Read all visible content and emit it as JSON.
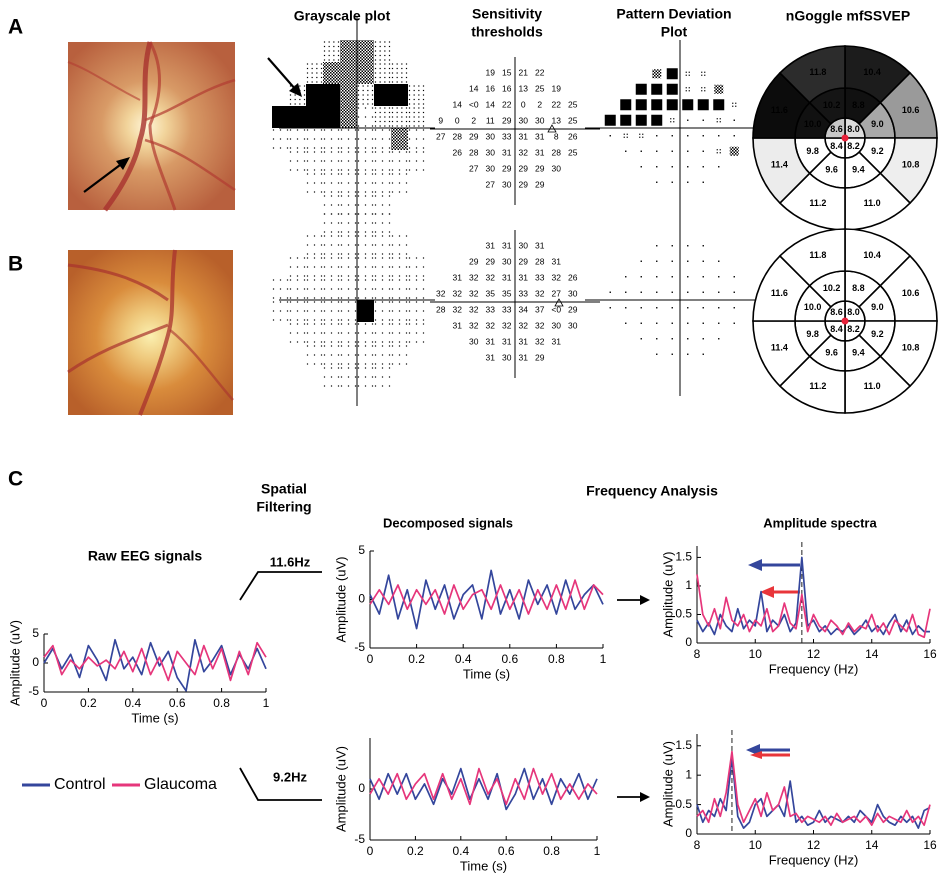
{
  "column_titles": [
    [
      "Grayscale plot"
    ],
    [
      "Sensitivity",
      "thresholds"
    ],
    [
      "Pattern Deviation",
      "Plot"
    ],
    [
      "nGoggle mfSSVEP"
    ]
  ],
  "panels": [
    {
      "label": "A",
      "sensitivity": [
        [
          19,
          15,
          21,
          22
        ],
        [
          14,
          16,
          16,
          13,
          25,
          19
        ],
        [
          14,
          "<0",
          14,
          22,
          0,
          2,
          22,
          25
        ],
        [
          9,
          0,
          2,
          11,
          29,
          30,
          30,
          13,
          25
        ],
        [
          27,
          28,
          29,
          30,
          33,
          31,
          31,
          8,
          26
        ],
        [
          26,
          28,
          30,
          31,
          32,
          31,
          28,
          25
        ],
        [
          27,
          30,
          29,
          29,
          29,
          30
        ],
        [
          27,
          30,
          29,
          29
        ]
      ],
      "ngoggle": [
        {
          "values": [
            8,
            8.2,
            8.4,
            8.6
          ],
          "value_labels": [
            "8.0",
            "8.2",
            "8.4",
            "8.6"
          ],
          "colors": [
            "#dddddd",
            "#ffffff",
            "#ffffff",
            "#c8c8c8"
          ]
        },
        {
          "values": [
            8.8,
            9,
            9.2,
            9.4,
            9.6,
            9.8,
            10,
            10.2
          ],
          "value_labels": [
            "8.8",
            "9.0",
            "9.2",
            "9.4",
            "9.6",
            "9.8",
            "10.0",
            "10.2"
          ],
          "colors": [
            "#111111",
            "#a8a8a8",
            "#ffffff",
            "#ffffff",
            "#ffffff",
            "#ffffff",
            "#111111",
            "#151515"
          ]
        },
        {
          "values": [
            10.4,
            10.6,
            10.8,
            11,
            11.2,
            11.4,
            11.6,
            11.8
          ],
          "value_labels": [
            "10.4",
            "10.6",
            "10.8",
            "11.0",
            "11.2",
            "11.4",
            "11.6",
            "11.8"
          ],
          "colors": [
            "#1c1c1c",
            "#9a9a9a",
            "#eeeeee",
            "#ffffff",
            "#ffffff",
            "#ececec",
            "#0c0c0c",
            "#2c2c2c"
          ]
        }
      ]
    },
    {
      "label": "B",
      "sensitivity": [
        [
          31,
          31,
          30,
          31
        ],
        [
          29,
          29,
          30,
          29,
          28,
          31
        ],
        [
          31,
          32,
          32,
          31,
          31,
          33,
          32,
          26
        ],
        [
          32,
          32,
          32,
          35,
          35,
          33,
          32,
          27,
          30
        ],
        [
          28,
          32,
          32,
          33,
          33,
          34,
          37,
          "<0",
          29
        ],
        [
          31,
          32,
          32,
          32,
          32,
          32,
          30,
          30
        ],
        [
          30,
          31,
          31,
          31,
          32,
          31
        ],
        [
          31,
          30,
          31,
          29
        ]
      ],
      "ngoggle": [
        {
          "values": [
            8,
            8.2,
            8.4,
            8.6
          ],
          "value_labels": [
            "8.0",
            "8.2",
            "8.4",
            "8.6"
          ],
          "color": "#ffffff"
        },
        {
          "values": [
            8.8,
            9,
            9.2,
            9.4,
            9.6,
            9.8,
            10,
            10.2
          ],
          "value_labels": [
            "8.8",
            "9.0",
            "9.2",
            "9.4",
            "9.6",
            "9.8",
            "10.0",
            "10.2"
          ],
          "color": "#ffffff"
        },
        {
          "values": [
            10.4,
            10.6,
            10.8,
            11,
            11.2,
            11.4,
            11.6,
            11.8
          ],
          "value_labels": [
            "10.4",
            "10.6",
            "10.8",
            "11.0",
            "11.2",
            "11.4",
            "11.6",
            "11.8"
          ],
          "color": "#ffffff"
        }
      ]
    }
  ],
  "panel_c": {
    "label": "C",
    "spatial_filtering": [
      "Spatial",
      "Filtering"
    ],
    "frequency_analysis": "Frequency Analysis",
    "decomposed_title": "Decomposed signals",
    "spectra_title": "Amplitude spectra",
    "frequencies": [
      "11.6Hz",
      "9.2Hz"
    ]
  },
  "chart_data": [
    {
      "type": "line",
      "title": "Raw EEG signals",
      "x_label": "Time (s)",
      "y_label": "Amplitude (uV)",
      "legend": "below",
      "x": [
        0,
        0.04,
        0.08,
        0.12,
        0.16,
        0.2,
        0.24,
        0.28,
        0.32,
        0.36,
        0.4,
        0.44,
        0.48,
        0.52,
        0.56,
        0.6,
        0.64,
        0.68,
        0.72,
        0.76,
        0.8,
        0.84,
        0.88,
        0.92,
        0.96,
        1
      ],
      "series": [
        {
          "name": "Control",
          "color": "#34469c",
          "values": [
            0,
            2.5,
            -1,
            1.5,
            -2.5,
            3,
            0.5,
            -3,
            4,
            -1,
            1,
            -2,
            3.5,
            -0.5,
            2,
            -2.5,
            -4.8,
            4,
            -1.5,
            0.5,
            3,
            -2,
            1.5,
            -1,
            2.5,
            -1
          ]
        },
        {
          "name": "Glaucoma",
          "color": "#e6367b",
          "values": [
            1,
            3,
            -2,
            0.5,
            -1,
            1,
            -0.5,
            0.5,
            -1,
            2,
            -1.5,
            2.5,
            -2,
            1,
            -3,
            2,
            0,
            -2,
            3,
            -1,
            2.5,
            -3,
            2,
            -2,
            3.5,
            1
          ]
        }
      ],
      "xlim": [
        0,
        1
      ],
      "ylim": [
        -5,
        5
      ],
      "xticks": [
        0,
        0.2,
        0.4,
        0.6,
        0.8,
        1
      ],
      "yticks": [
        -5,
        0,
        5
      ]
    },
    {
      "type": "line",
      "x_label": "Time (s)",
      "y_label": "Amplitude (uV)",
      "x": [
        0,
        0.04,
        0.08,
        0.12,
        0.16,
        0.2,
        0.24,
        0.28,
        0.32,
        0.36,
        0.4,
        0.44,
        0.48,
        0.52,
        0.56,
        0.6,
        0.64,
        0.68,
        0.72,
        0.76,
        0.8,
        0.84,
        0.88,
        0.92,
        0.96,
        1
      ],
      "series": [
        {
          "color": "#34469c",
          "values": [
            0.5,
            -1.5,
            2.5,
            -2,
            1,
            -3,
            2,
            -1,
            1.5,
            -2,
            0.5,
            1.5,
            -2,
            3,
            -1.5,
            1,
            -2,
            2,
            -0.5,
            1.5,
            -1.5,
            2,
            -1,
            0.5,
            1.5,
            -0.5
          ]
        },
        {
          "color": "#e6367b",
          "values": [
            -0.5,
            1,
            -0.5,
            1.5,
            -1,
            1,
            -0.5,
            1,
            -1.5,
            1.5,
            -1,
            0.5,
            1,
            -1,
            1.5,
            -1,
            1,
            -1.5,
            1,
            -1,
            1.5,
            -1,
            2,
            -1,
            1.5,
            0.5
          ]
        }
      ],
      "xlim": [
        0,
        1
      ],
      "ylim": [
        -5,
        5
      ],
      "xticks": [
        0,
        0.2,
        0.4,
        0.6,
        0.8,
        1
      ],
      "yticks": [
        -5,
        0,
        5
      ]
    },
    {
      "type": "line",
      "x_label": "Time (s)",
      "y_label": "Amplitude (uV)",
      "x": [
        0,
        0.04,
        0.08,
        0.12,
        0.16,
        0.2,
        0.24,
        0.28,
        0.32,
        0.36,
        0.4,
        0.44,
        0.48,
        0.52,
        0.56,
        0.6,
        0.64,
        0.68,
        0.72,
        0.76,
        0.8,
        0.84,
        0.88,
        0.92,
        0.96,
        1
      ],
      "series": [
        {
          "color": "#34469c",
          "values": [
            1,
            -1,
            1.5,
            -0.5,
            1.5,
            -1,
            0.5,
            -1.5,
            1,
            -0.5,
            2,
            -1,
            1,
            -1,
            1.5,
            -2,
            -0.5,
            2,
            -1,
            1,
            -1.5,
            1,
            -0.5,
            1.5,
            -1,
            1
          ]
        },
        {
          "color": "#e6367b",
          "values": [
            -0.5,
            1,
            -0.5,
            1.5,
            -1,
            0.5,
            1.5,
            -1,
            1.5,
            -1,
            1,
            -1.5,
            2,
            -0.5,
            1,
            -1.5,
            1,
            -1,
            2,
            -0.5,
            1.5,
            -1,
            0.5,
            -1,
            0.5,
            -0.5
          ]
        }
      ],
      "xlim": [
        0,
        1
      ],
      "ylim": [
        -5,
        5
      ],
      "xticks": [
        0,
        0.2,
        0.4,
        0.6,
        0.8,
        1
      ],
      "yticks": [
        -5,
        0
      ]
    },
    {
      "type": "line",
      "x_label": "Frequency (Hz)",
      "y_label": "Amplitude (uV)",
      "marker_x": 11.6,
      "x": [
        8,
        8.2,
        8.4,
        8.6,
        8.8,
        9,
        9.2,
        9.4,
        9.6,
        9.8,
        10,
        10.2,
        10.4,
        10.6,
        10.8,
        11,
        11.2,
        11.4,
        11.6,
        11.8,
        12,
        12.2,
        12.4,
        12.6,
        12.8,
        13,
        13.2,
        13.4,
        13.6,
        13.8,
        14,
        14.2,
        14.4,
        14.6,
        14.8,
        15,
        15.2,
        15.4,
        15.6,
        15.8,
        16
      ],
      "series": [
        {
          "color": "#34469c",
          "values": [
            0.4,
            0.2,
            0.35,
            0.15,
            0.5,
            0.3,
            0.2,
            0.6,
            0.25,
            0.4,
            0.3,
            0.9,
            0.2,
            0.4,
            0.3,
            0.5,
            0.2,
            0.35,
            1.5,
            0.3,
            0.4,
            0.2,
            0.3,
            0.15,
            0.25,
            0.2,
            0.3,
            0.15,
            0.25,
            0.4,
            0.2,
            0.3,
            0.15,
            0.35,
            0.5,
            0.2,
            0.4,
            0.15,
            0.3,
            0.2,
            0.2
          ]
        },
        {
          "color": "#e6367b",
          "values": [
            1.2,
            0.5,
            0.3,
            0.6,
            0.25,
            0.8,
            0.4,
            0.3,
            0.5,
            0.2,
            0.4,
            0.3,
            0.6,
            0.2,
            0.3,
            0.7,
            0.35,
            0.25,
            0.85,
            0.2,
            0.5,
            0.3,
            0.2,
            0.4,
            0.3,
            0.15,
            0.35,
            0.2,
            0.3,
            0.25,
            0.5,
            0.2,
            0.35,
            0.15,
            0.4,
            0.3,
            0.2,
            0.5,
            0.15,
            0.1,
            0.6
          ]
        }
      ],
      "xlim": [
        8,
        16
      ],
      "ylim": [
        0,
        1.7
      ],
      "xticks": [
        8,
        10,
        12,
        14,
        16
      ],
      "yticks": [
        0,
        0.5,
        1,
        1.5
      ]
    },
    {
      "type": "line",
      "x_label": "Frequency (Hz)",
      "y_label": "Amplitude (uV)",
      "marker_x": 9.2,
      "x": [
        8,
        8.2,
        8.4,
        8.6,
        8.8,
        9,
        9.2,
        9.4,
        9.6,
        9.8,
        10,
        10.2,
        10.4,
        10.6,
        10.8,
        11,
        11.2,
        11.4,
        11.6,
        11.8,
        12,
        12.2,
        12.4,
        12.6,
        12.8,
        13,
        13.2,
        13.4,
        13.6,
        13.8,
        14,
        14.2,
        14.4,
        14.6,
        14.8,
        15,
        15.2,
        15.4,
        15.6,
        15.8,
        16
      ],
      "series": [
        {
          "color": "#34469c",
          "values": [
            0.5,
            0.2,
            0.4,
            0.3,
            0.6,
            0.4,
            1.3,
            0.3,
            0.1,
            0.2,
            0.5,
            0.6,
            0.3,
            0.4,
            0.5,
            0.3,
            0.9,
            0.2,
            0.3,
            0.15,
            0.2,
            0.4,
            0.2,
            0.3,
            0.25,
            0.2,
            0.3,
            0.2,
            0.4,
            0.3,
            0.2,
            0.5,
            0.3,
            0.2,
            0.15,
            0.3,
            0.2,
            0.3,
            0.1,
            0.4,
            0.45
          ]
        },
        {
          "color": "#e6367b",
          "values": [
            0.3,
            0.4,
            0.2,
            0.6,
            0.3,
            0.7,
            1.4,
            0.5,
            0.2,
            0.4,
            0.6,
            0.3,
            0.7,
            0.4,
            0.5,
            0.8,
            0.3,
            0.35,
            0.2,
            0.3,
            0.25,
            0.2,
            0.3,
            0.15,
            0.35,
            0.2,
            0.25,
            0.3,
            0.2,
            0.3,
            0.15,
            0.35,
            0.2,
            0.3,
            0.25,
            0.2,
            0.4,
            0.2,
            0.3,
            0.15,
            0.5
          ]
        }
      ],
      "xlim": [
        8,
        16
      ],
      "ylim": [
        0,
        1.7
      ],
      "xticks": [
        8,
        10,
        12,
        14,
        16
      ],
      "yticks": [
        0,
        0.5,
        1,
        1.5
      ]
    }
  ]
}
